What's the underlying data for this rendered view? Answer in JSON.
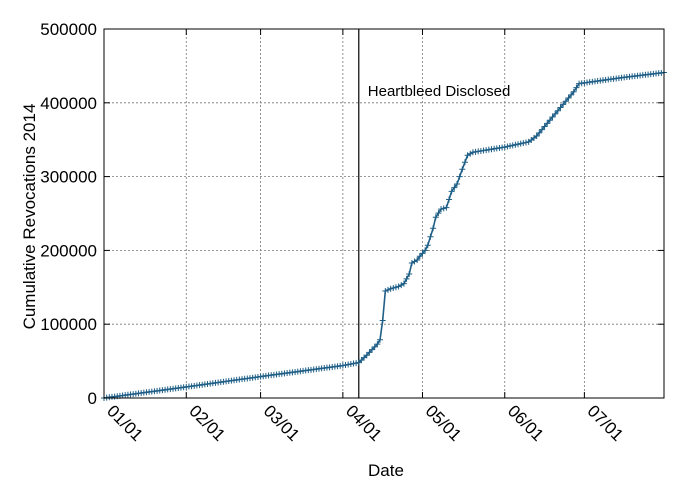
{
  "chart_data": {
    "type": "line",
    "xlabel": "Date",
    "ylabel": "Cumulative Revocations 2014",
    "xlim": [
      "2014-01-01",
      "2014-07-31"
    ],
    "ylim": [
      0,
      500000
    ],
    "grid": true,
    "x_tick_labels": [
      "01/01",
      "02/01",
      "03/01",
      "04/01",
      "05/01",
      "06/01",
      "07/01"
    ],
    "x_tick_dates": [
      "2014-01-01",
      "2014-02-01",
      "2014-03-01",
      "2014-04-01",
      "2014-05-01",
      "2014-06-01",
      "2014-07-01"
    ],
    "y_ticks": [
      0,
      100000,
      200000,
      300000,
      400000,
      500000
    ],
    "y_tick_labels": [
      "0",
      "100000",
      "200000",
      "300000",
      "400000",
      "500000"
    ],
    "annotation": {
      "text": "Heartbleed Disclosed",
      "date": "2014-04-07"
    },
    "series": [
      {
        "color": "#1f5f87",
        "marker": "+",
        "points": [
          [
            "2014-01-01",
            0
          ],
          [
            "2014-02-01",
            15000
          ],
          [
            "2014-03-01",
            29000
          ],
          [
            "2014-04-01",
            44000
          ],
          [
            "2014-04-07",
            48000
          ],
          [
            "2014-04-10",
            58000
          ],
          [
            "2014-04-14",
            73000
          ],
          [
            "2014-04-15",
            79000
          ],
          [
            "2014-04-16",
            105000
          ],
          [
            "2014-04-17",
            145000
          ],
          [
            "2014-04-19",
            148000
          ],
          [
            "2014-04-22",
            151000
          ],
          [
            "2014-04-24",
            155000
          ],
          [
            "2014-04-26",
            168000
          ],
          [
            "2014-04-27",
            183000
          ],
          [
            "2014-04-29",
            187000
          ],
          [
            "2014-04-30",
            192000
          ],
          [
            "2014-05-02",
            200000
          ],
          [
            "2014-05-03",
            207000
          ],
          [
            "2014-05-05",
            230000
          ],
          [
            "2014-05-06",
            245000
          ],
          [
            "2014-05-08",
            256000
          ],
          [
            "2014-05-10",
            258000
          ],
          [
            "2014-05-12",
            280000
          ],
          [
            "2014-05-14",
            290000
          ],
          [
            "2014-05-16",
            310000
          ],
          [
            "2014-05-18",
            329000
          ],
          [
            "2014-05-20",
            333000
          ],
          [
            "2014-06-01",
            340000
          ],
          [
            "2014-06-10",
            347000
          ],
          [
            "2014-06-13",
            355000
          ],
          [
            "2014-06-20",
            385000
          ],
          [
            "2014-06-27",
            415000
          ],
          [
            "2014-06-29",
            426000
          ],
          [
            "2014-07-05",
            429000
          ],
          [
            "2014-07-15",
            434000
          ],
          [
            "2014-07-31",
            441000
          ]
        ]
      }
    ]
  }
}
